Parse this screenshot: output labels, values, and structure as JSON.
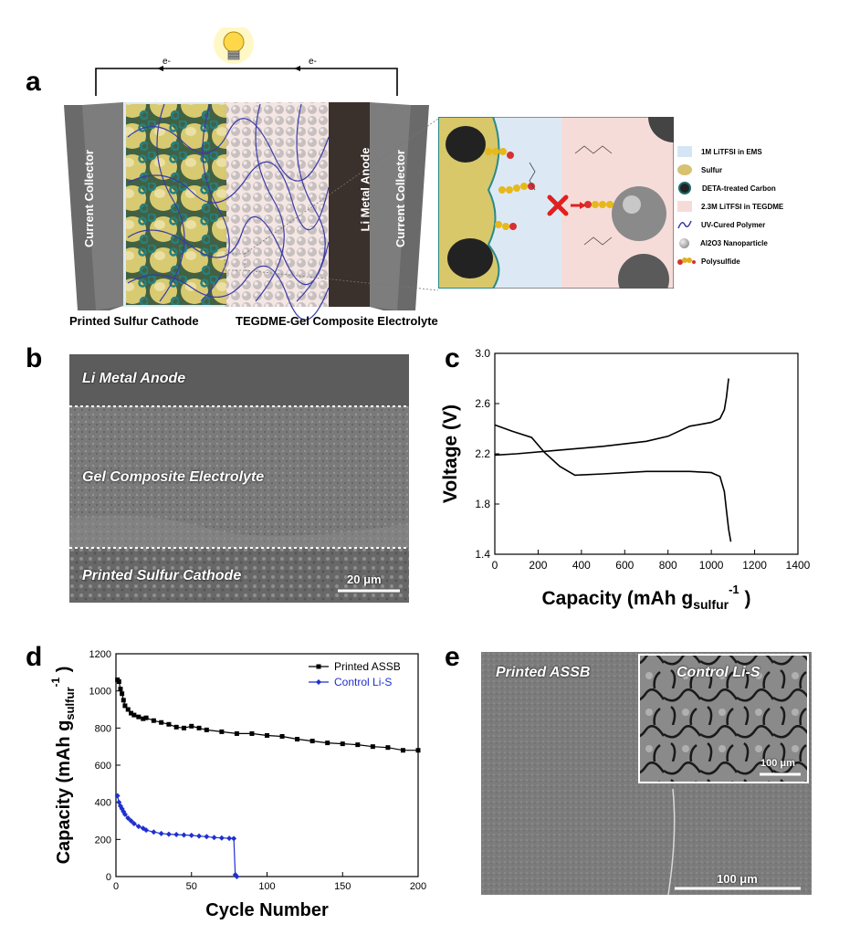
{
  "panel_labels": {
    "a": "a",
    "b": "b",
    "c": "c",
    "d": "d",
    "e": "e"
  },
  "panel_a": {
    "electron_left": "e-",
    "electron_right": "e-",
    "current_collector_left": "Current Collector",
    "current_collector_right": "Current Collector",
    "anode_label": "Li Metal Anode",
    "cathode_caption": "Printed Sulfur Cathode",
    "electrolyte_caption": "TEGDME-Gel Composite Electrolyte",
    "legend": [
      {
        "label": "1M LiTFSI in EMS",
        "icon": "light-blue-square",
        "color": "#d4e6f5"
      },
      {
        "label": "Sulfur",
        "icon": "yellow-blob",
        "color": "#d6c270"
      },
      {
        "label": "DETA-treated Carbon",
        "icon": "carbon-ring",
        "color": "#1a6a6a"
      },
      {
        "label": "2.3M LiTFSI in TEGDME",
        "icon": "light-pink-square",
        "color": "#f6dcd8"
      },
      {
        "label": "UV-Cured Polymer",
        "icon": "blue-wave",
        "color": "#3a3aa0"
      },
      {
        "label": "Al2O3 Nanoparticle",
        "icon": "gray-sphere",
        "color": "#9a9a9a"
      },
      {
        "label": "Polysulfide",
        "icon": "polysulfide-chain",
        "color": "#e0b020"
      }
    ]
  },
  "panel_b": {
    "anode": "Li Metal Anode",
    "electrolyte": "Gel Composite Electrolyte",
    "cathode": "Printed Sulfur Cathode",
    "scale_bar": "20 μm"
  },
  "panel_e": {
    "main_label": "Printed ASSB",
    "inset_label": "Control Li-S",
    "inset_scale_bar": "100 μm",
    "scale_bar": "100 μm"
  },
  "chart_data": [
    {
      "panel": "c",
      "type": "line",
      "xlabel": "Capacity (mAh g",
      "xlabel_sub": "sulfur",
      "xlabel_sup": "-1",
      "xlabel_end": ")",
      "ylabel": "Voltage (V)",
      "xlim": [
        0,
        1400
      ],
      "ylim": [
        1.4,
        3.0
      ],
      "xticks": [
        0,
        200,
        400,
        600,
        800,
        1000,
        1200,
        1400
      ],
      "yticks": [
        1.4,
        1.8,
        2.2,
        2.6,
        3.0
      ],
      "ytick_labels": [
        "1.4",
        "1.8",
        "2.2",
        "2.6",
        "3.0"
      ],
      "series": [
        {
          "role": "discharge",
          "x": [
            0,
            80,
            170,
            230,
            300,
            370,
            500,
            700,
            900,
            1000,
            1040,
            1060,
            1070,
            1080,
            1090
          ],
          "y": [
            2.43,
            2.38,
            2.33,
            2.21,
            2.1,
            2.03,
            2.04,
            2.06,
            2.06,
            2.05,
            2.02,
            1.9,
            1.75,
            1.6,
            1.5
          ]
        },
        {
          "role": "charge",
          "x": [
            0,
            100,
            300,
            500,
            700,
            800,
            900,
            1000,
            1040,
            1060,
            1070,
            1080
          ],
          "y": [
            2.19,
            2.2,
            2.23,
            2.26,
            2.3,
            2.34,
            2.42,
            2.45,
            2.48,
            2.55,
            2.65,
            2.8
          ]
        }
      ]
    },
    {
      "panel": "d",
      "type": "scatter",
      "xlabel": "Cycle Number",
      "ylabel": "Capacity (mAh g",
      "ylabel_sub": "sulfur",
      "ylabel_sup": "-1",
      "ylabel_end": ")",
      "xlim": [
        0,
        200
      ],
      "ylim": [
        0,
        1200
      ],
      "xticks": [
        0,
        50,
        100,
        150,
        200
      ],
      "yticks": [
        0,
        200,
        400,
        600,
        800,
        1000,
        1200
      ],
      "legend_position": "top-right",
      "series": [
        {
          "name": "Printed ASSB",
          "color": "#000000",
          "marker": "square",
          "x": [
            1,
            2,
            3,
            4,
            5,
            6,
            8,
            10,
            12,
            15,
            18,
            20,
            25,
            30,
            35,
            40,
            45,
            50,
            55,
            60,
            70,
            80,
            90,
            100,
            110,
            120,
            130,
            140,
            150,
            160,
            170,
            180,
            190,
            200
          ],
          "y": [
            1060,
            1050,
            1010,
            985,
            950,
            920,
            900,
            880,
            870,
            860,
            850,
            855,
            840,
            830,
            820,
            805,
            800,
            810,
            800,
            790,
            780,
            770,
            770,
            760,
            755,
            740,
            730,
            720,
            715,
            710,
            700,
            695,
            680,
            680
          ]
        },
        {
          "name": "Control Li-S",
          "color": "#1f2fd0",
          "marker": "diamond",
          "x": [
            1,
            2,
            3,
            4,
            5,
            6,
            8,
            10,
            12,
            15,
            18,
            20,
            25,
            30,
            35,
            40,
            45,
            50,
            55,
            60,
            65,
            70,
            75,
            78,
            79,
            80
          ],
          "y": [
            435,
            400,
            380,
            365,
            350,
            335,
            315,
            300,
            285,
            270,
            260,
            250,
            240,
            232,
            228,
            226,
            224,
            222,
            218,
            215,
            210,
            208,
            206,
            205,
            10,
            0
          ]
        }
      ]
    }
  ]
}
